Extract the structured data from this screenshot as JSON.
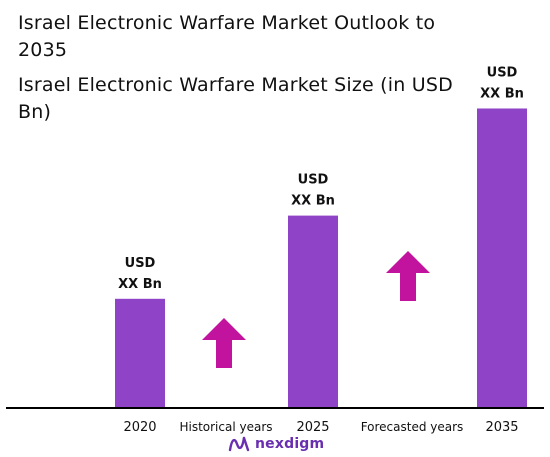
{
  "title": "Israel Electronic Warfare Market Outlook to 2035",
  "subtitle": "Israel Electronic Warfare Market Size (in USD Bn)",
  "logo": {
    "text": "nexdigm",
    "icon": "nexdigm-logo-icon"
  },
  "colors": {
    "bar": "#8f44c8",
    "arrow": "#c2139e",
    "axis": "#000000",
    "text": "#111111"
  },
  "chart_data": {
    "type": "bar",
    "categories": [
      "2020",
      "2025",
      "2035"
    ],
    "values": [
      105,
      185,
      288
    ],
    "data_labels": [
      "USD XX Bn",
      "USD XX Bn",
      "USD XX Bn"
    ],
    "between_labels": [
      "Historical years",
      "Forecasted years"
    ],
    "ylim": [
      0,
      300
    ],
    "grid": false,
    "legend": "none"
  }
}
